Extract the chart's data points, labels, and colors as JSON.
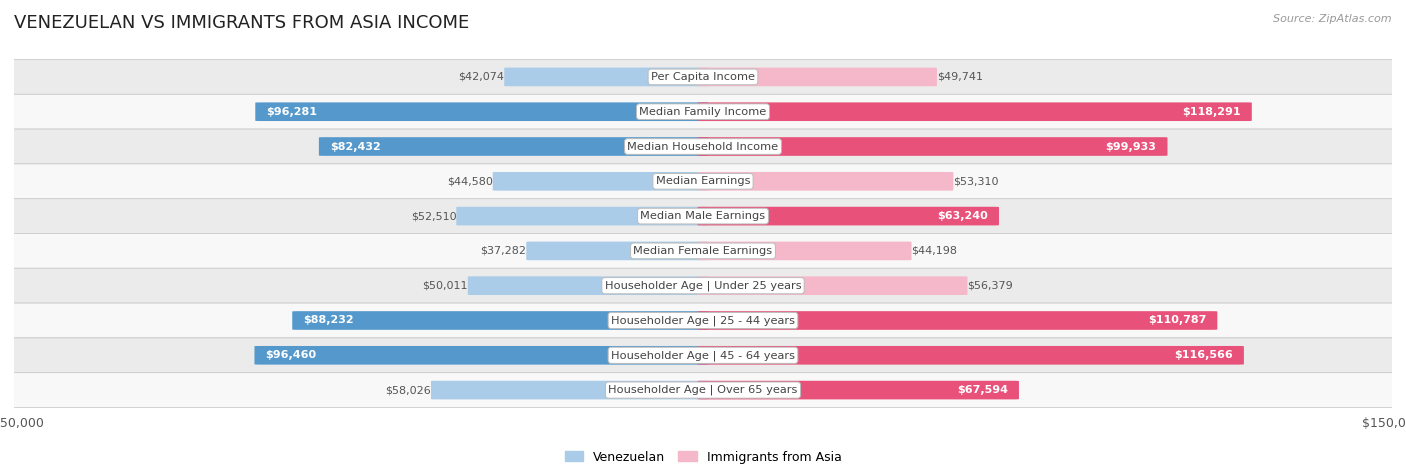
{
  "title": "VENEZUELAN VS IMMIGRANTS FROM ASIA INCOME",
  "source": "Source: ZipAtlas.com",
  "categories": [
    "Per Capita Income",
    "Median Family Income",
    "Median Household Income",
    "Median Earnings",
    "Median Male Earnings",
    "Median Female Earnings",
    "Householder Age | Under 25 years",
    "Householder Age | 25 - 44 years",
    "Householder Age | 45 - 64 years",
    "Householder Age | Over 65 years"
  ],
  "venezuelan": [
    42074,
    96281,
    82432,
    44580,
    52510,
    37282,
    50011,
    88232,
    96460,
    58026
  ],
  "asia": [
    49741,
    118291,
    99933,
    53310,
    63240,
    44198,
    56379,
    110787,
    116566,
    67594
  ],
  "venezuelan_labels": [
    "$42,074",
    "$96,281",
    "$82,432",
    "$44,580",
    "$52,510",
    "$37,282",
    "$50,011",
    "$88,232",
    "$96,460",
    "$58,026"
  ],
  "asia_labels": [
    "$49,741",
    "$118,291",
    "$99,933",
    "$53,310",
    "$63,240",
    "$44,198",
    "$56,379",
    "$110,787",
    "$116,566",
    "$67,594"
  ],
  "max_val": 150000,
  "color_venezuelan_light": "#aacce8",
  "color_venezuelan_dark": "#5599cc",
  "color_asia_light": "#f5b8cb",
  "color_asia_dark": "#e8527a",
  "row_bg_light": "#ebebeb",
  "row_bg_white": "#f8f8f8",
  "bar_height": 0.52,
  "title_fontsize": 13,
  "label_fontsize": 8.2,
  "value_fontsize": 8.0,
  "inside_threshold": 60000
}
